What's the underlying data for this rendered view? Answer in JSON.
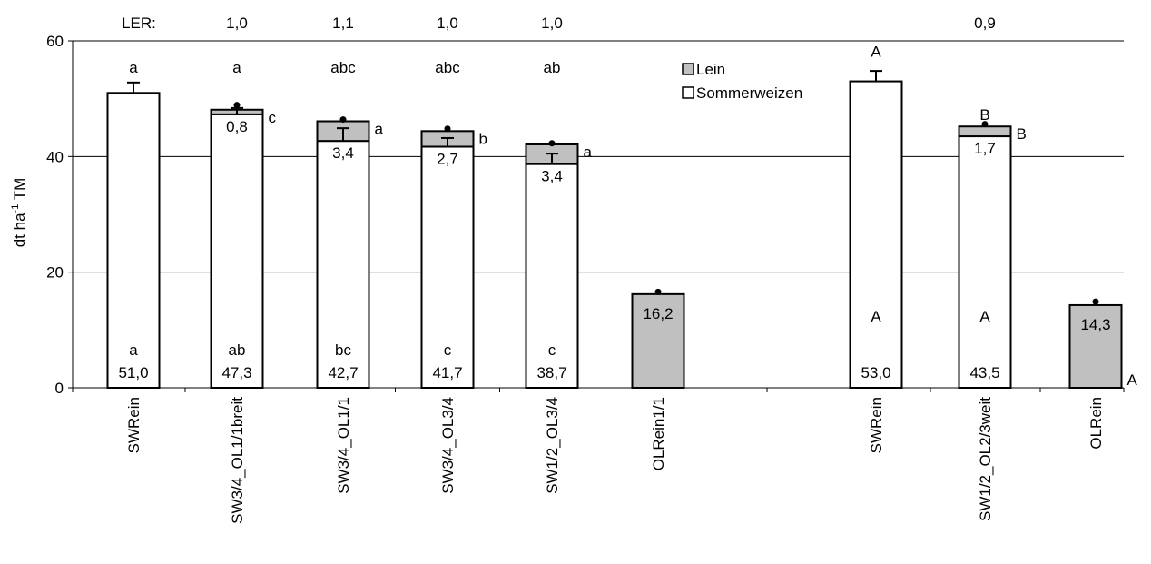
{
  "chart_data": {
    "type": "bar",
    "stacked": true,
    "ylabel_main": "dt ha",
    "ylabel_sup": "-1",
    "ylabel_tail": " TM",
    "ylim": [
      0,
      60
    ],
    "yticks": [
      "0",
      "20",
      "40",
      "60"
    ],
    "grid": "horizontal",
    "legend_position": "top-right",
    "ler_label": "LER:",
    "series": [
      {
        "name": "Lein",
        "color": "#c0c0c0"
      },
      {
        "name": "Sommerweizen",
        "color": "#ffffff"
      }
    ],
    "categories": [
      {
        "label": "SWRein",
        "group": 1,
        "wheat": 51.0,
        "flax": 0,
        "err_wheat": 1.8,
        "err_total": null,
        "ler": "",
        "top_letter": "a",
        "side_letter": "",
        "label_in_bar": "",
        "in_letter": "a",
        "wheat_label": "51,0"
      },
      {
        "label": "SW3/4_OL1/1breit",
        "group": 1,
        "wheat": 47.3,
        "flax": 0.8,
        "err_wheat": 1.1,
        "err_total": 0.8,
        "ler": "1,0",
        "top_letter": "a",
        "side_letter": "c",
        "label_in_bar": "0,8",
        "in_letter": "ab",
        "wheat_label": "47,3"
      },
      {
        "label": "SW3/4_OL1/1",
        "group": 1,
        "wheat": 42.7,
        "flax": 3.4,
        "err_wheat": 2.2,
        "err_total": 0.3,
        "ler": "1,1",
        "top_letter": "abc",
        "side_letter": "a",
        "label_in_bar": "3,4",
        "in_letter": "bc",
        "wheat_label": "42,7"
      },
      {
        "label": "SW3/4_OL3/4",
        "group": 1,
        "wheat": 41.7,
        "flax": 2.7,
        "err_wheat": 1.5,
        "err_total": 0.4,
        "ler": "1,0",
        "top_letter": "abc",
        "side_letter": "b",
        "label_in_bar": "2,7",
        "in_letter": "c",
        "wheat_label": "41,7"
      },
      {
        "label": "SW1/2_OL3/4",
        "group": 1,
        "wheat": 38.7,
        "flax": 3.4,
        "err_wheat": 1.8,
        "err_total": 0.2,
        "ler": "1,0",
        "top_letter": "ab",
        "side_letter": "a",
        "label_in_bar": "3,4",
        "in_letter": "c",
        "wheat_label": "38,7"
      },
      {
        "label": "OLRein1/1",
        "group": 1,
        "wheat": 0,
        "flax": 16.2,
        "err_wheat": null,
        "err_total": 0.4,
        "ler": "",
        "top_letter": "",
        "side_letter": "",
        "label_in_bar": "16,2",
        "in_letter": "",
        "wheat_label": ""
      },
      {
        "label": "SWRein",
        "group": 2,
        "wheat": 53.0,
        "flax": 0,
        "err_wheat": 1.8,
        "err_total": null,
        "ler": "",
        "top_letter": "A",
        "side_letter": "",
        "label_in_bar": "",
        "in_letter": "A",
        "wheat_label": "53,0"
      },
      {
        "label": "SW1/2_OL2/3weit",
        "group": 2,
        "wheat": 43.5,
        "flax": 1.7,
        "err_wheat": null,
        "err_total": 0.4,
        "ler": "0,9",
        "top_letter": "B",
        "side_letter": "B",
        "label_in_bar": "1,7",
        "in_letter": "A",
        "wheat_label": "43,5"
      },
      {
        "label": "OLRein",
        "group": 2,
        "wheat": 0,
        "flax": 14.3,
        "err_wheat": null,
        "err_total": 0.6,
        "ler": "",
        "top_letter": "",
        "side_letter": "A",
        "label_in_bar": "14,3",
        "in_letter": "",
        "wheat_label": ""
      }
    ]
  }
}
